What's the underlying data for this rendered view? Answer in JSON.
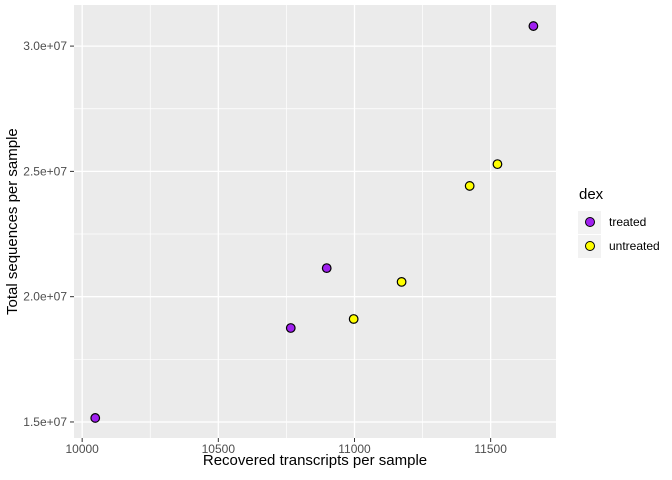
{
  "chart_data": {
    "type": "scatter",
    "title": "",
    "xlabel": "Recovered transcripts per sample",
    "ylabel": "Total sequences per sample",
    "xlim": [
      9970,
      11740
    ],
    "ylim": [
      14360000,
      31640000
    ],
    "x_ticks": [
      10000,
      10500,
      11000,
      11500
    ],
    "x_tick_labels": [
      "10000",
      "10500",
      "11000",
      "11500"
    ],
    "x_minor_ticks": [
      10250,
      10750,
      11250
    ],
    "y_ticks": [
      15000000,
      20000000,
      25000000,
      30000000
    ],
    "y_tick_labels": [
      "1.5e+07",
      "2.0e+07",
      "2.5e+07",
      "3.0e+07"
    ],
    "y_minor_ticks": [
      17500000,
      22500000,
      27500000
    ],
    "grid": true,
    "legend": {
      "title": "dex",
      "position": "right"
    },
    "series": [
      {
        "name": "treated",
        "color": "#A020F0",
        "points": [
          [
            10048,
            15160000
          ],
          [
            10766,
            18750000
          ],
          [
            10898,
            21140000
          ],
          [
            11657,
            30800000
          ]
        ]
      },
      {
        "name": "untreated",
        "color": "#FFFF00",
        "points": [
          [
            10997,
            19110000
          ],
          [
            11173,
            20590000
          ],
          [
            11423,
            24420000
          ],
          [
            11525,
            25290000
          ]
        ]
      }
    ],
    "styles": {
      "panel_bg": "#EBEBEB",
      "grid_color": "#FFFFFF",
      "tick_mark_color": "#333333",
      "tick_text_color": "#4D4D4D",
      "axis_title_color": "#000000",
      "legend_key_bg": "#F2F2F2",
      "point_stroke": "#000000"
    }
  }
}
